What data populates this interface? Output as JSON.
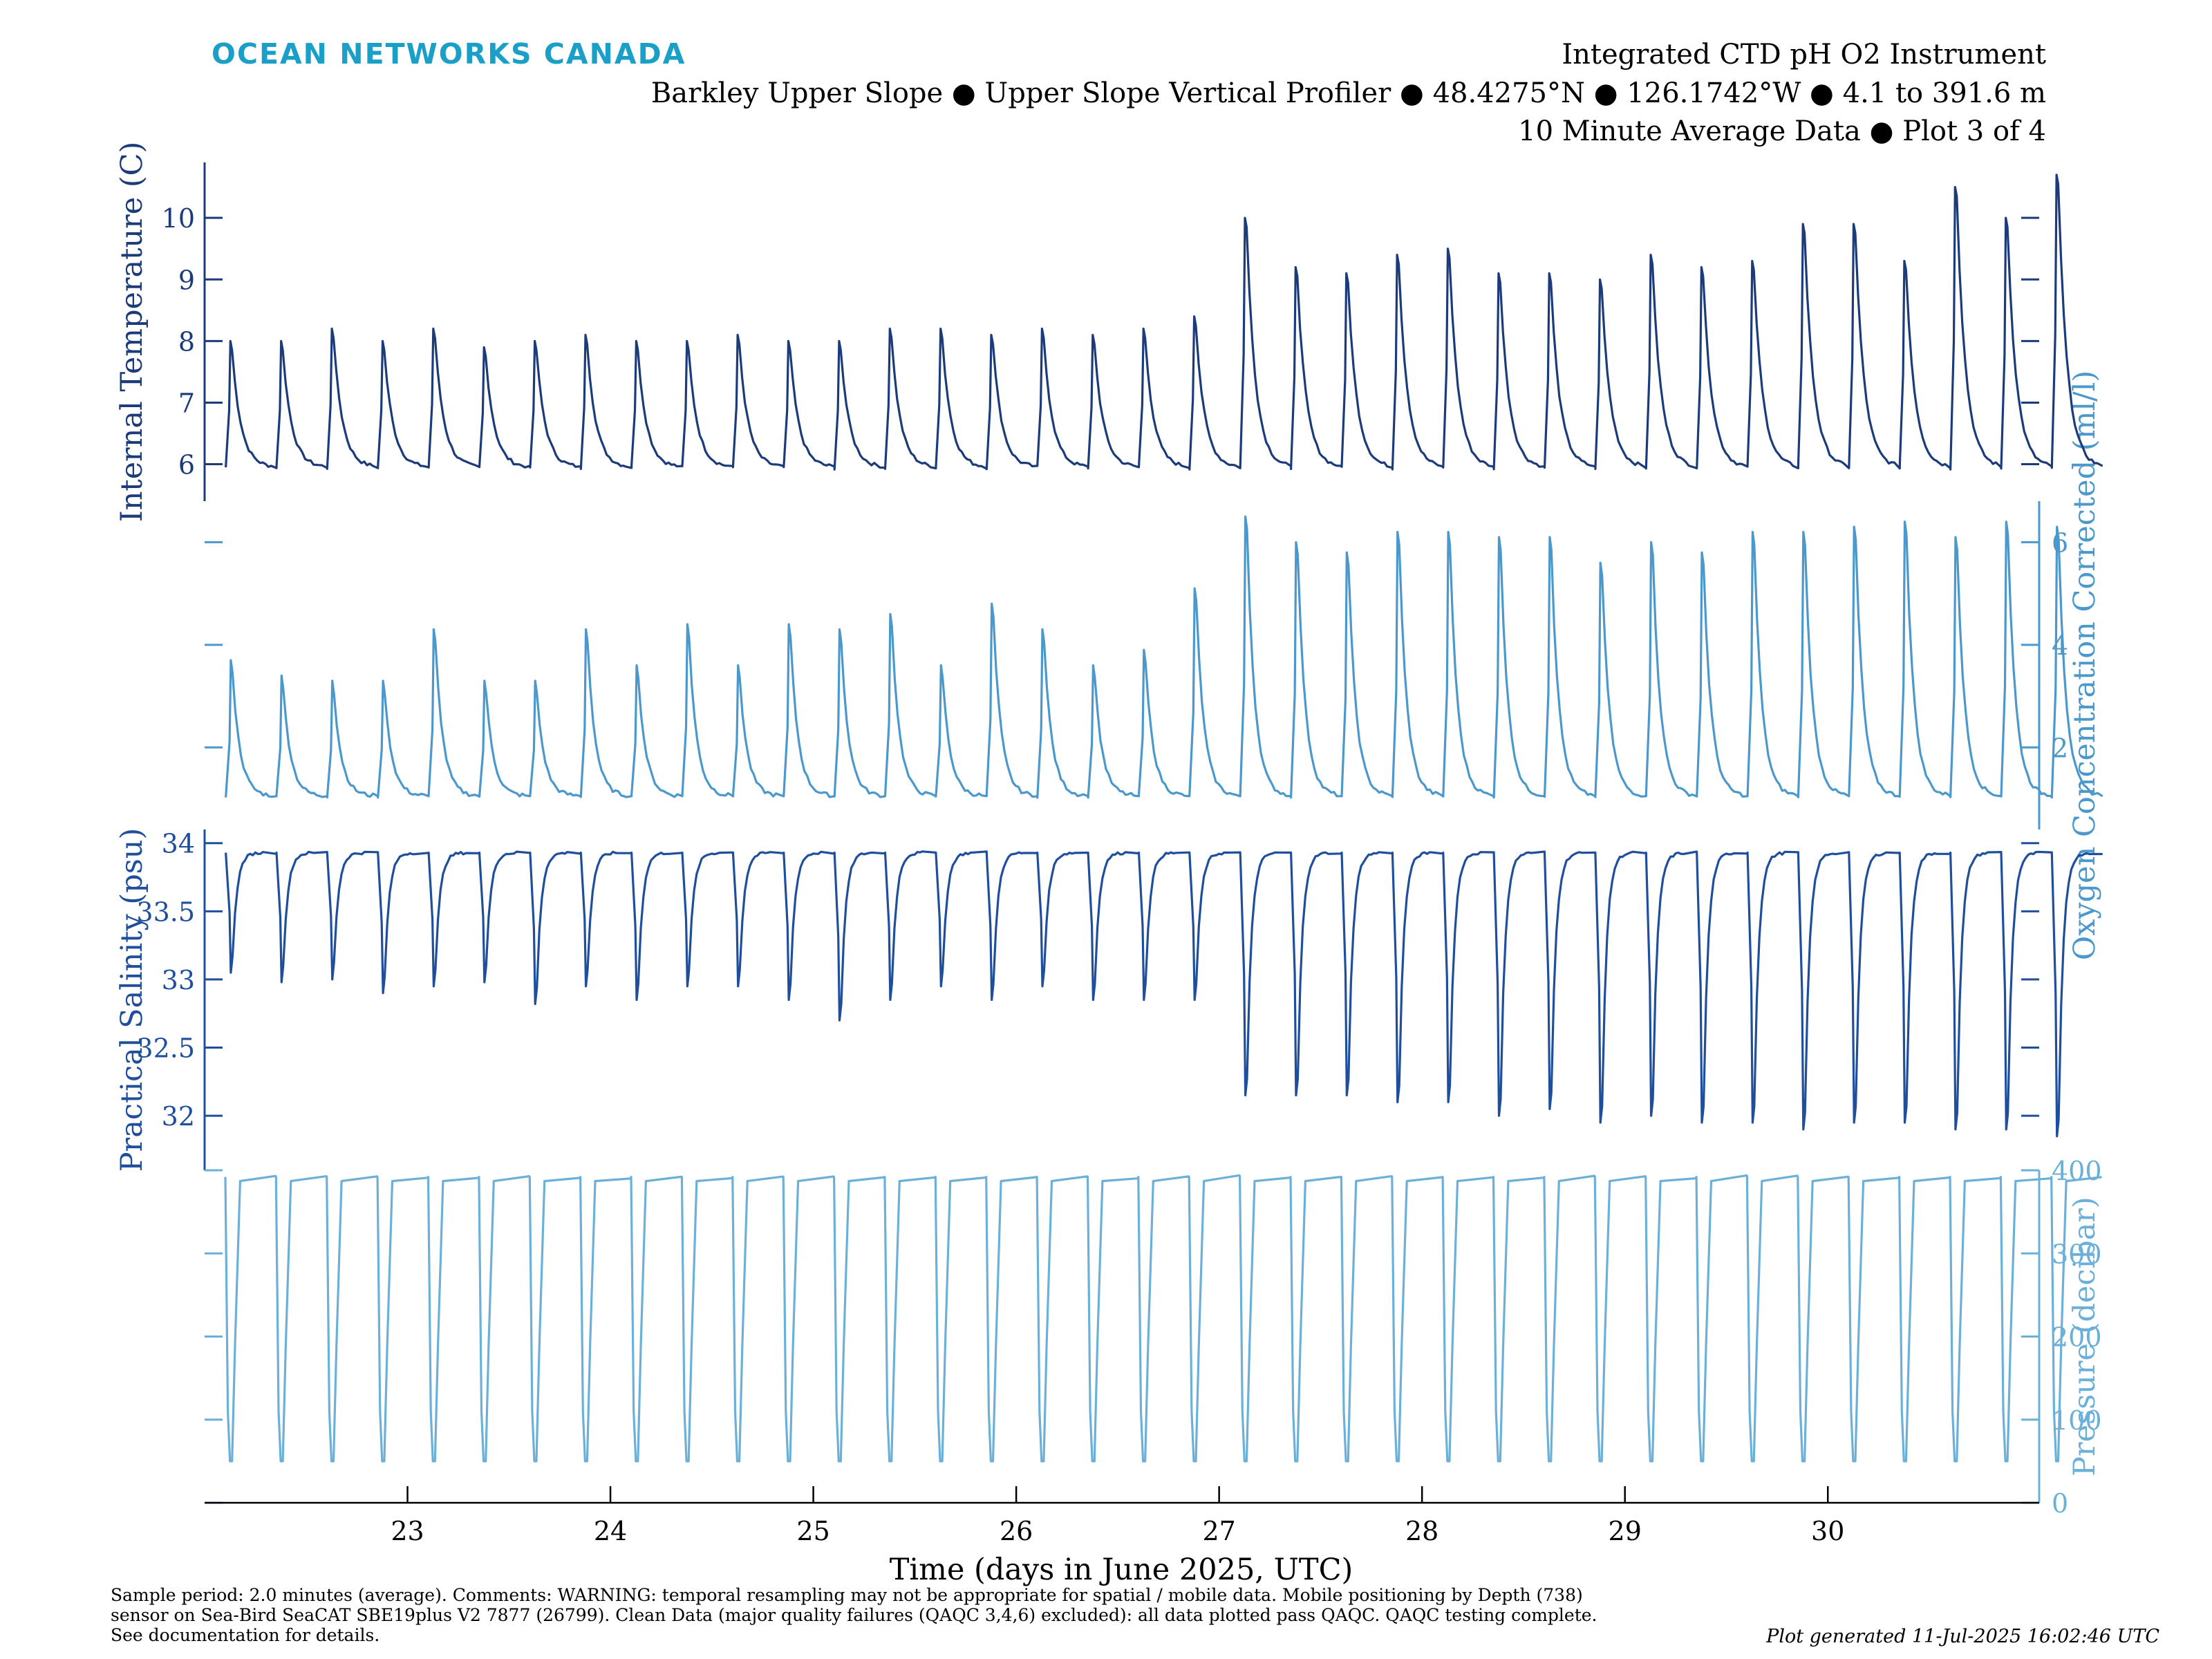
{
  "header": {
    "brand": "OCEAN NETWORKS CANADA",
    "title_lines": [
      "Integrated CTD pH O2 Instrument",
      "Barkley Upper Slope ● Upper Slope Vertical Profiler ● 48.4275°N ● 126.1742°W ● 4.1 to 391.6 m",
      "10 Minute Average Data ● Plot 3 of 4"
    ]
  },
  "footer": {
    "lines": [
      "Sample period: 2.0 minutes (average). Comments: WARNING: temporal resampling may not be appropriate for spatial / mobile data. Mobile positioning by Depth (738)",
      "sensor on Sea-Bird SeaCAT SBE19plus V2 7877 (26799). Clean Data (major quality failures (QAQC 3,4,6) excluded): all data plotted pass QAQC. QAQC testing complete.",
      "See documentation for details."
    ],
    "generated": "Plot generated 11-Jul-2025 16:02:46 UTC"
  },
  "colors": {
    "temperature": "#1b3b7a",
    "oxygen": "#4a98cc",
    "salinity": "#1f4f9c",
    "pressure": "#6bb0d8",
    "brand": "#1aa0c8"
  },
  "chart_data": {
    "type": "line",
    "xlabel": "Time (days in June 2025, UTC)",
    "x_range": [
      "2025-06-22T00:00",
      "2025-06-31T01:00"
    ],
    "x_ticks": [
      "23",
      "24",
      "25",
      "26",
      "27",
      "28",
      "29",
      "30"
    ],
    "profile_cycle_hours": 6,
    "panels": [
      {
        "name": "Internal Temperature (C)",
        "axis_side": "left",
        "ylim": [
          5.4,
          10.9
        ],
        "y_ticks": [
          "6",
          "7",
          "8",
          "9",
          "10"
        ],
        "baseline": 5.95,
        "profile_peaks": [
          8.0,
          8.0,
          8.2,
          8.0,
          8.2,
          7.9,
          8.0,
          8.1,
          8.0,
          8.0,
          8.1,
          8.0,
          8.0,
          8.2,
          8.2,
          8.1,
          8.2,
          8.1,
          8.2,
          8.4,
          10.0,
          9.2,
          9.1,
          9.4,
          9.5,
          9.1,
          9.1,
          9.0,
          9.4,
          9.2,
          9.3,
          9.9,
          9.9,
          9.3,
          10.5,
          10.0,
          10.7
        ]
      },
      {
        "name": "Oxygen Concentration Corrected (ml/l)",
        "axis_side": "right",
        "ylim": [
          0.4,
          6.8
        ],
        "y_ticks": [
          "2",
          "4",
          "6"
        ],
        "baseline": 1.05,
        "profile_peaks": [
          3.7,
          3.4,
          3.3,
          3.3,
          4.3,
          3.3,
          3.3,
          4.3,
          3.6,
          4.4,
          3.6,
          4.4,
          4.3,
          4.6,
          3.6,
          4.8,
          4.3,
          3.6,
          3.9,
          5.1,
          6.5,
          6.0,
          5.8,
          6.2,
          6.2,
          6.1,
          6.1,
          5.6,
          6.0,
          5.8,
          6.2,
          6.2,
          6.3,
          6.4,
          6.1,
          6.4,
          6.3
        ]
      },
      {
        "name": "Practical Salinity (psu)",
        "axis_side": "left",
        "ylim": [
          31.6,
          34.1
        ],
        "y_ticks": [
          "32",
          "32.5",
          "33",
          "33.5",
          "34"
        ],
        "baseline": 33.93,
        "profile_minima": [
          33.05,
          32.98,
          33.0,
          32.9,
          32.95,
          32.98,
          32.82,
          32.95,
          32.85,
          32.95,
          32.95,
          32.85,
          32.7,
          32.85,
          32.95,
          32.85,
          32.95,
          32.85,
          32.85,
          32.85,
          32.15,
          32.15,
          32.15,
          32.1,
          32.1,
          32.0,
          32.05,
          31.95,
          32.0,
          31.95,
          31.95,
          31.9,
          31.95,
          31.95,
          31.9,
          31.9,
          31.85
        ]
      },
      {
        "name": "Pressure (decibar)",
        "axis_side": "right",
        "ylim": [
          0,
          400
        ],
        "y_ticks": [
          "0",
          "100",
          "200",
          "300",
          "400"
        ],
        "surface_pressure": 50,
        "bottom_pressure": 392
      }
    ]
  }
}
